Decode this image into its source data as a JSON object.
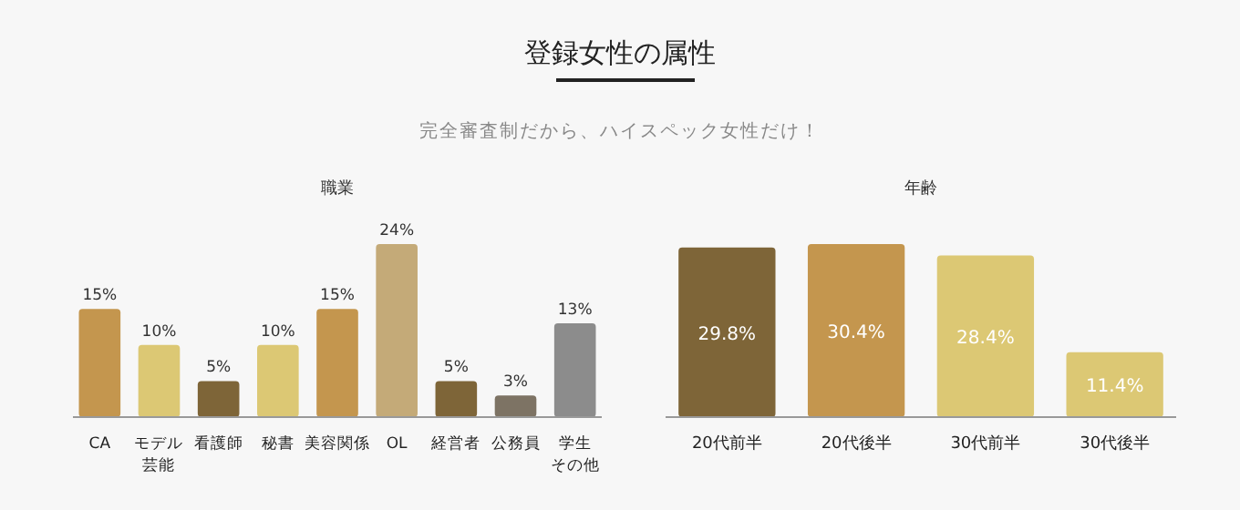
{
  "chart_data": [
    {
      "type": "other",
      "title": "登録女性の属性",
      "subtitle": "完全審査制だから、ハイスペック女性だけ！"
    },
    {
      "type": "bar",
      "title": "職業",
      "categories": [
        "CA",
        "モデル芸能",
        "看護師",
        "秘書",
        "美容関係",
        "OL",
        "経営者",
        "公務員",
        "学生その他"
      ],
      "values": [
        15,
        10,
        5,
        10,
        15,
        24,
        5,
        3,
        13
      ],
      "colors": [
        "#c4964e",
        "#dcc874",
        "#7e6538",
        "#dcc874",
        "#c4964e",
        "#c4aa78",
        "#7e6538",
        "#7d7364",
        "#8c8c8c"
      ],
      "value_labels": [
        "15%",
        "10%",
        "5%",
        "10%",
        "15%",
        "24%",
        "5%",
        "3%",
        "13%"
      ]
    },
    {
      "type": "bar",
      "title": "年齢",
      "categories": [
        "20代前半",
        "20代後半",
        "30代前半",
        "30代後半"
      ],
      "values": [
        29.8,
        30.4,
        28.4,
        11.4
      ],
      "colors": [
        "#7e6538",
        "#c4964e",
        "#dcc874",
        "#dcc874"
      ],
      "value_labels": [
        "29.8%",
        "30.4%",
        "28.4%",
        "11.4%"
      ]
    }
  ]
}
